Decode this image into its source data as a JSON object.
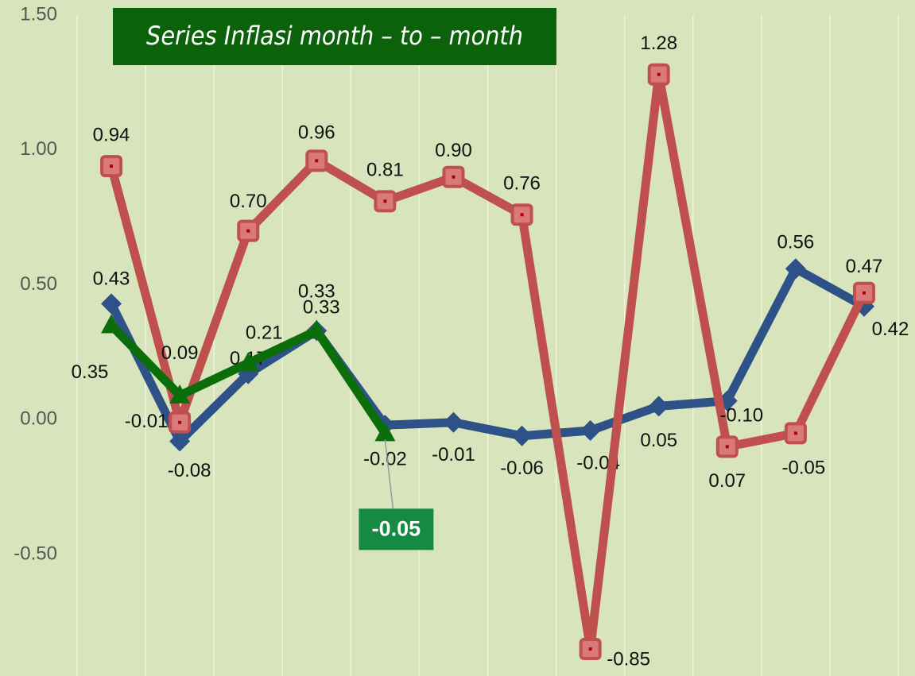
{
  "chart_data": {
    "type": "line",
    "title": "Series Inflasi month – to – month",
    "categories": [
      null,
      null,
      null,
      null,
      null,
      null,
      null,
      null,
      null,
      null,
      null,
      null
    ],
    "series": [
      {
        "color": "#2e5188",
        "marker": "diamond",
        "values": [
          0.43,
          -0.08,
          0.17,
          0.33,
          -0.02,
          -0.01,
          -0.06,
          -0.04,
          0.05,
          0.07,
          0.56,
          0.42
        ],
        "value_labels": [
          "0.43",
          "-0.08",
          "0.17",
          "0.33",
          "-0.02",
          "-0.01",
          "-0.06",
          "-0.04",
          "0.05",
          "0.07",
          "0.56",
          "0.42"
        ]
      },
      {
        "color": "#c0504d",
        "marker": "square",
        "values": [
          0.94,
          -0.01,
          0.7,
          0.96,
          0.81,
          0.9,
          0.76,
          -0.85,
          1.28,
          -0.1,
          -0.05,
          0.47
        ],
        "value_labels": [
          "0.94",
          "-0.01",
          "0.70",
          "0.96",
          "0.81",
          "0.90",
          "0.76",
          "-0.85",
          "1.28",
          "-0.10",
          "-0.05",
          "0.47"
        ]
      },
      {
        "color": "#0b6e0b",
        "marker": "triangle",
        "values": [
          0.35,
          0.09,
          0.21,
          0.33,
          -0.05,
          null,
          null,
          null,
          null,
          null,
          null,
          null
        ],
        "value_labels": [
          "0.35",
          "0.09",
          "0.21",
          "0.33",
          "-0.05",
          null,
          null,
          null,
          null,
          null,
          null,
          null
        ]
      }
    ],
    "ylim": [
      -0.95,
      1.5
    ],
    "yticks": [
      {
        "value": 1.5,
        "label": "1.50"
      },
      {
        "value": 1.0,
        "label": "1.00"
      },
      {
        "value": 0.5,
        "label": "0.50"
      },
      {
        "value": 0,
        "label": "0.00"
      },
      {
        "value": -0.5,
        "label": "-0.50"
      }
    ]
  }
}
